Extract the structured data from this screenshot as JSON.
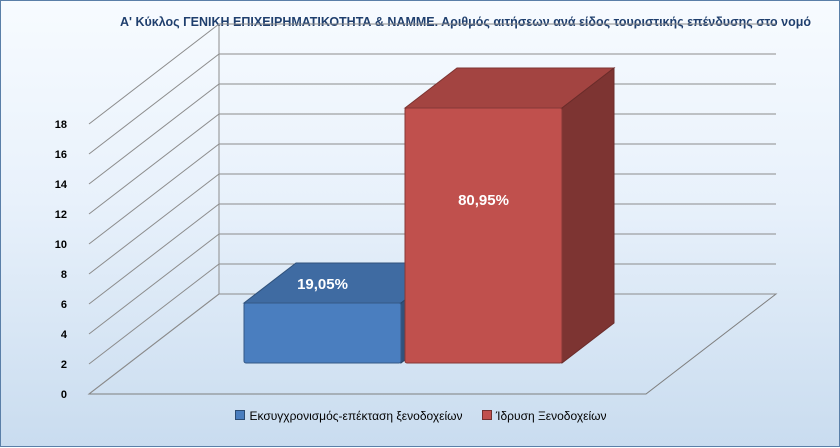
{
  "chart_data": {
    "type": "bar",
    "title": "Α' Κύκλος ΓΕΝΙΚΗ ΕΠΙΧΕΙΡΗΜΑΤΙΚΟΤΗΤΑ & ΝΑΜΜΕ. Αριθμός αιτήσεων ανά είδος τουριστικής επένδυσης στο νομό",
    "categories": [
      "Εκσυγχρονισμός-επέκταση ξενοδοχείων",
      "Ίδρυση Ξενοδοχείων"
    ],
    "values": [
      4,
      17
    ],
    "data_labels": [
      "19,05%",
      "80,95%"
    ],
    "colors": [
      "#4a7ebf",
      "#c0504d"
    ],
    "ylim": [
      0,
      18
    ],
    "yticks": [
      "0",
      "2",
      "4",
      "6",
      "8",
      "10",
      "12",
      "14",
      "16",
      "18"
    ],
    "grid": true,
    "legend_position": "bottom",
    "style": "3d"
  }
}
